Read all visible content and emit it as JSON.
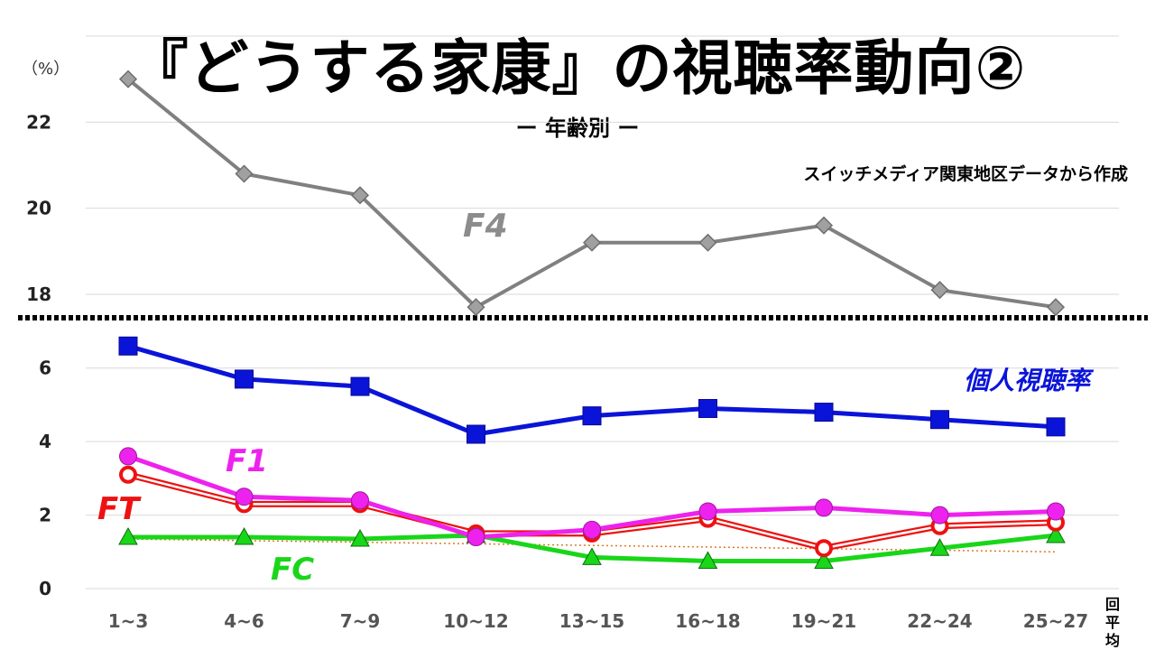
{
  "header": {
    "title": "『どうする家康』の視聴率動向②",
    "subtitle": "ー 年齢別 ー",
    "source": "スイッチメディア関東地区データから作成",
    "y_unit": "（%）",
    "x_unit_line1": "回",
    "x_unit_line2": "平均"
  },
  "chart_data": {
    "type": "line",
    "broken_axis": true,
    "categories": [
      "1~3",
      "4~6",
      "7~9",
      "10~12",
      "13~15",
      "16~18",
      "19~21",
      "22~24",
      "25~27"
    ],
    "upper_panel": {
      "ylim": [
        17.6,
        24.0
      ],
      "yticks": [
        "18",
        "20",
        "22"
      ]
    },
    "lower_panel": {
      "ylim": [
        0,
        7
      ],
      "yticks": [
        "0",
        "2",
        "4",
        "6"
      ]
    },
    "grid": true,
    "series": [
      {
        "name": "F4",
        "panel": "upper",
        "color": "#808080",
        "marker": "diamond",
        "values": [
          23.0,
          20.8,
          20.3,
          17.7,
          19.2,
          19.2,
          19.6,
          18.1,
          17.7
        ]
      },
      {
        "name": "個人視聴率",
        "panel": "lower",
        "color": "#0a14d8",
        "marker": "square",
        "values": [
          6.6,
          5.7,
          5.5,
          4.2,
          4.7,
          4.9,
          4.8,
          4.6,
          4.4
        ]
      },
      {
        "name": "F1",
        "panel": "lower",
        "color": "#ee22ee",
        "marker": "circle",
        "values": [
          3.6,
          2.5,
          2.4,
          1.4,
          1.6,
          2.1,
          2.2,
          2.0,
          2.1
        ]
      },
      {
        "name": "FT",
        "panel": "lower",
        "color": "#ee1111",
        "marker": "open-circle",
        "values": [
          3.1,
          2.3,
          2.3,
          1.5,
          1.5,
          1.9,
          1.1,
          1.7,
          1.8
        ]
      },
      {
        "name": "FC",
        "panel": "lower",
        "color": "#19d619",
        "marker": "triangle",
        "values": [
          1.4,
          1.4,
          1.35,
          1.45,
          0.85,
          0.75,
          0.75,
          1.1,
          1.45
        ]
      }
    ],
    "trendline": {
      "series": "FT",
      "color": "#e07820",
      "style": "dotted",
      "values_start_end": [
        1.35,
        1.0
      ]
    }
  }
}
